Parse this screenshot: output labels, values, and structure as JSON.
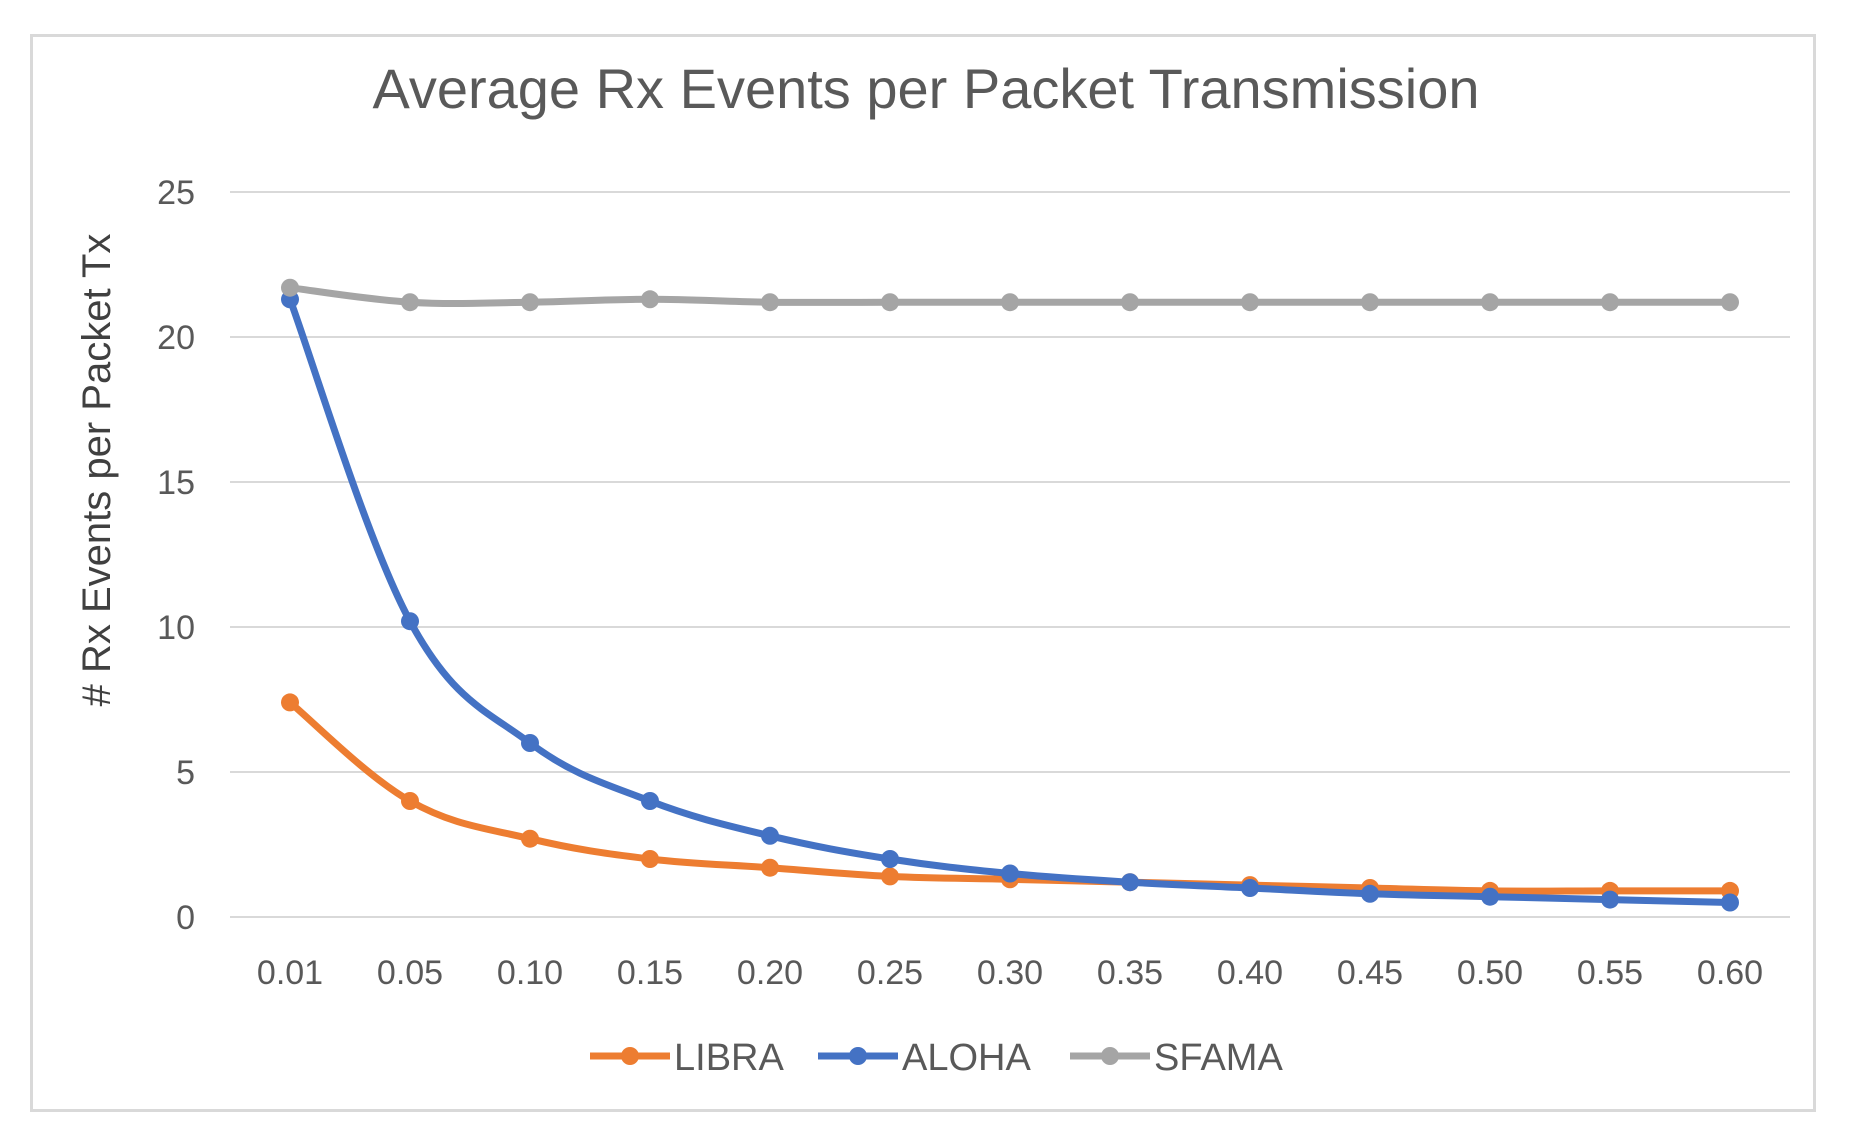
{
  "chart_data": {
    "type": "line",
    "title": "Average Rx Events per Packet Transmission",
    "xlabel": "",
    "ylabel": "# Rx Events per Packet Tx",
    "categories": [
      "0.01",
      "0.05",
      "0.10",
      "0.15",
      "0.20",
      "0.25",
      "0.30",
      "0.35",
      "0.40",
      "0.45",
      "0.50",
      "0.55",
      "0.60"
    ],
    "yticks": [
      "0",
      "5",
      "10",
      "15",
      "20",
      "25"
    ],
    "ylim": [
      0,
      25
    ],
    "grid": true,
    "legend_position": "bottom",
    "series": [
      {
        "name": "LIBRA",
        "color": "#ED7D31",
        "values": [
          7.4,
          4.0,
          2.7,
          2.0,
          1.7,
          1.4,
          1.3,
          1.2,
          1.1,
          1.0,
          0.9,
          0.9,
          0.9
        ]
      },
      {
        "name": "ALOHA",
        "color": "#4472C4",
        "values": [
          21.3,
          10.2,
          6.0,
          4.0,
          2.8,
          2.0,
          1.5,
          1.2,
          1.0,
          0.8,
          0.7,
          0.6,
          0.5
        ]
      },
      {
        "name": "SFAMA",
        "color": "#A5A5A5",
        "values": [
          21.7,
          21.2,
          21.2,
          21.3,
          21.2,
          21.2,
          21.2,
          21.2,
          21.2,
          21.2,
          21.2,
          21.2,
          21.2
        ]
      }
    ]
  }
}
